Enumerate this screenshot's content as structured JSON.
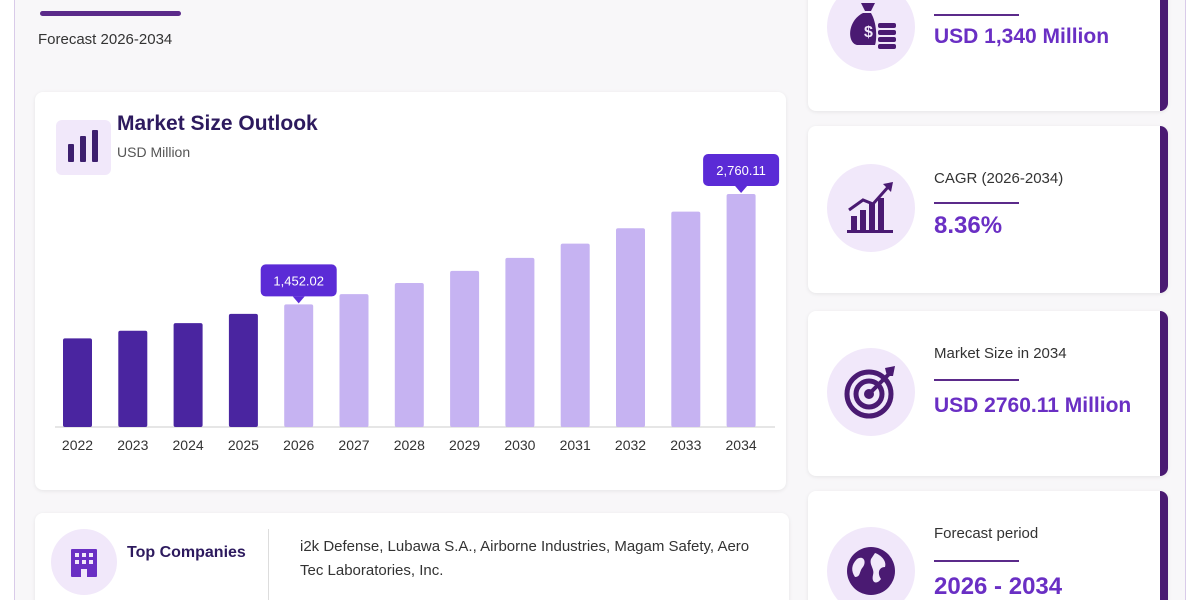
{
  "header": {
    "forecast_subtitle": "Forecast 2026-2034"
  },
  "chart_card": {
    "title": "Market Size Outlook",
    "unit": "USD Million"
  },
  "chart_data": {
    "type": "bar",
    "title": "Market Size Outlook",
    "ylabel": "USD Million",
    "categories": [
      "2022",
      "2023",
      "2024",
      "2025",
      "2026",
      "2027",
      "2028",
      "2029",
      "2030",
      "2031",
      "2032",
      "2033",
      "2034"
    ],
    "values": [
      1050,
      1140,
      1230,
      1340,
      1452.02,
      1574,
      1706,
      1849,
      2004,
      2172,
      2354,
      2552,
      2760.11
    ],
    "historical_years": [
      "2022",
      "2023",
      "2024",
      "2025"
    ],
    "ylim": [
      0,
      2760.11
    ],
    "annotations": [
      {
        "category": "2026",
        "label": "1,452.02"
      },
      {
        "category": "2034",
        "label": "2,760.11"
      }
    ],
    "colors": {
      "historical": "#4a25a0",
      "forecast": "#c6b3f2",
      "callout": "#5b2bd6"
    },
    "grid": false
  },
  "companies": {
    "title": "Top Companies",
    "list": "i2k Defense, Lubawa S.A., Airborne Industries, Magam Safety, Aero Tec Laboratories, Inc."
  },
  "stats": [
    {
      "label": "",
      "value": "USD 1,340 Million",
      "icon": "money-bag-icon"
    },
    {
      "label": "CAGR (2026-2034)",
      "value": "8.36%",
      "icon": "growth-chart-icon"
    },
    {
      "label": "Market Size in 2034",
      "value": "USD 2760.11 Million",
      "icon": "target-icon"
    },
    {
      "label": "Forecast period",
      "value": "2026 - 2034",
      "icon": "globe-icon"
    }
  ]
}
